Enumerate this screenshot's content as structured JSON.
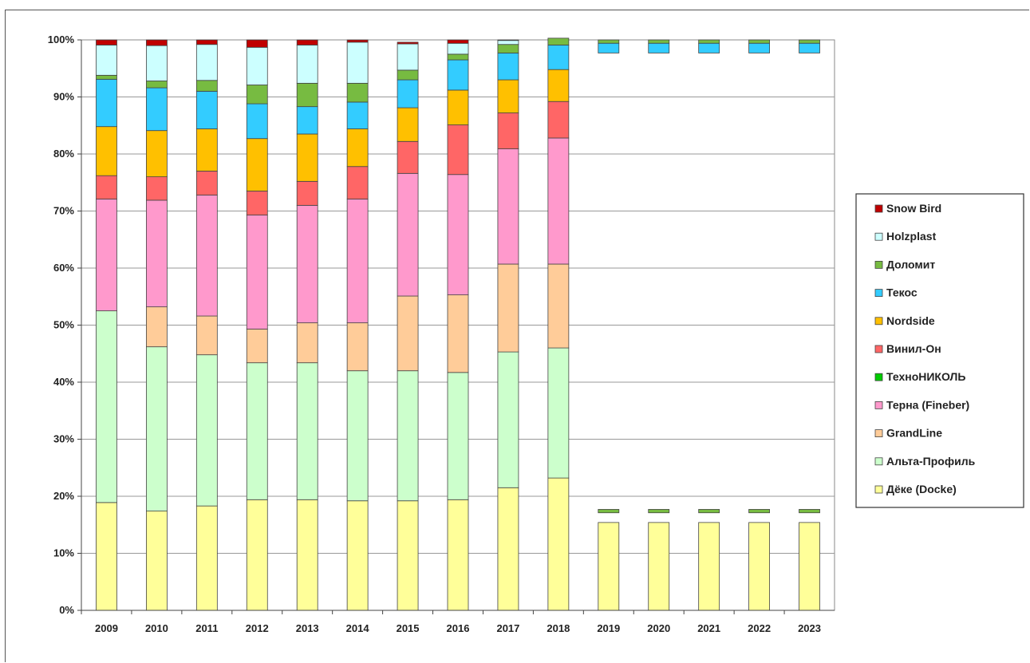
{
  "chart_data": {
    "type": "bar",
    "stacked": true,
    "percent": true,
    "categories": [
      "2009",
      "2010",
      "2011",
      "2012",
      "2013",
      "2014",
      "2015",
      "2016",
      "2017",
      "2018",
      "2019",
      "2020",
      "2021",
      "2022",
      "2023"
    ],
    "ylim": [
      0,
      100
    ],
    "yticks": [
      "0%",
      "10%",
      "20%",
      "30%",
      "40%",
      "50%",
      "60%",
      "70%",
      "80%",
      "90%",
      "100%"
    ],
    "grid": true,
    "legend_position": "right",
    "series": [
      {
        "name": "Дёке (Docke)",
        "color": "#FFFF99",
        "values": [
          18.9,
          17.4,
          18.3,
          19.4,
          19.4,
          19.2,
          19.2,
          19.4,
          21.5,
          23.2,
          15.4,
          15.4,
          15.4,
          15.4,
          15.4
        ]
      },
      {
        "name": "Альта-Профиль",
        "color": "#CCFFCC",
        "values": [
          33.6,
          28.8,
          26.5,
          24.0,
          24.0,
          22.8,
          22.8,
          22.3,
          23.8,
          22.8,
          null,
          null,
          null,
          null,
          null
        ]
      },
      {
        "name": "GrandLine",
        "color": "#FFCC99",
        "values": [
          0,
          7.0,
          6.8,
          5.9,
          7.0,
          8.4,
          13.1,
          13.6,
          15.4,
          14.7,
          null,
          null,
          null,
          null,
          null
        ]
      },
      {
        "name": "Терна (Fineber)",
        "color": "#FF99CC",
        "values": [
          19.6,
          18.7,
          21.2,
          20.0,
          20.6,
          21.7,
          21.5,
          21.1,
          20.2,
          22.1,
          null,
          null,
          null,
          null,
          null
        ]
      },
      {
        "name": "ТехноНИКОЛЬ",
        "color": "#00CC00",
        "values": [
          0,
          0,
          0,
          0,
          0,
          0,
          0,
          0,
          0,
          0,
          null,
          null,
          null,
          null,
          null
        ]
      },
      {
        "name": "Винил-Он",
        "color": "#FF6666",
        "values": [
          4.1,
          4.1,
          4.2,
          4.2,
          4.2,
          5.7,
          5.6,
          8.7,
          6.3,
          6.4,
          null,
          null,
          null,
          null,
          null
        ]
      },
      {
        "name": "Nordside",
        "color": "#FFC000",
        "values": [
          8.6,
          8.1,
          7.4,
          9.2,
          8.3,
          6.6,
          5.9,
          6.1,
          5.8,
          5.6,
          null,
          null,
          null,
          null,
          null
        ]
      },
      {
        "name": "Текос",
        "color": "#33CCFF",
        "values": [
          8.3,
          7.5,
          6.6,
          6.1,
          4.8,
          4.7,
          4.9,
          5.3,
          4.7,
          4.3,
          1.7,
          1.7,
          1.7,
          1.7,
          1.7
        ]
      },
      {
        "name": "Доломит",
        "color": "#77BB41",
        "values": [
          0.7,
          1.2,
          1.9,
          3.3,
          4.1,
          3.3,
          1.7,
          1.0,
          1.5,
          1.2,
          0.6,
          0.6,
          0.6,
          0.6,
          0.6
        ]
      },
      {
        "name": "Holzplast",
        "color": "#CCFFFF",
        "values": [
          5.3,
          6.2,
          6.3,
          6.6,
          6.7,
          7.2,
          4.6,
          1.9,
          0.7,
          0,
          0,
          0,
          0,
          0,
          0
        ]
      },
      {
        "name": "Snow Bird",
        "color": "#C00000",
        "values": [
          0.9,
          1.0,
          0.8,
          1.3,
          0.9,
          0.4,
          0.3,
          0.6,
          0.1,
          0,
          0,
          0,
          0,
          0,
          0
        ]
      }
    ]
  }
}
